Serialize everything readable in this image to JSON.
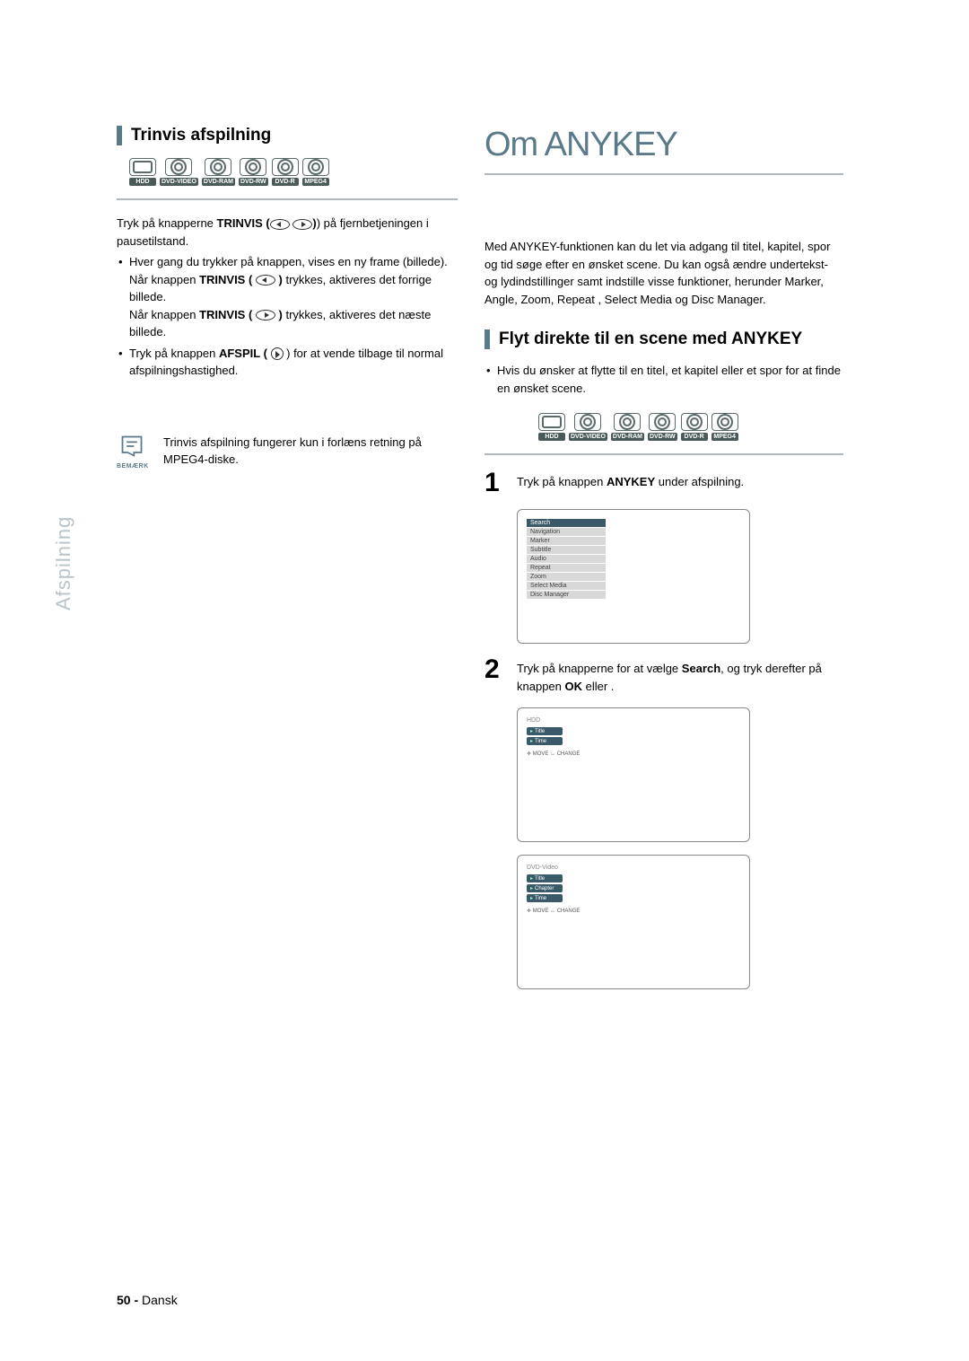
{
  "left": {
    "title": "Trinvis afspilning",
    "badges": [
      "HDD",
      "DVD-VIDEO",
      "DVD-RAM",
      "DVD-RW",
      "DVD-R",
      "MPEG4"
    ],
    "intro_a": "Tryk på knapperne ",
    "intro_b": "TRINVIS (",
    "intro_c": ") på fjernbetjeningen i pausetilstand.",
    "b1": "Hver gang du trykker på knappen, vises en ny frame (billede).",
    "b1_l2a": "Når knappen ",
    "b1_l2b": "TRINVIS ( ",
    "b1_l2c": " ) ",
    "b1_l2d": "trykkes, aktiveres det forrige billede.",
    "b1_l3a": "Når knappen ",
    "b1_l3b": "TRINVIS ( ",
    "b1_l3c": " ) ",
    "b1_l3d": "trykkes, aktiveres det næste billede.",
    "b2a": "Tryk på knappen ",
    "b2b": "AFSPIL ( ",
    "b2c": " ) for at vende tilbage til normal afspilningshastighed.",
    "note_label": "BEMÆRK",
    "note_text": "Trinvis afspilning fungerer kun i forlæns retning på MPEG4-diske."
  },
  "side_tab": "Afspilning",
  "right": {
    "big_title": "Om ANYKEY",
    "intro": "Med ANYKEY-funktionen kan du let via adgang til titel, kapitel, spor og tid søge efter en ønsket scene. Du kan også ændre undertekst- og lydindstillinger samt indstille visse funktioner, herunder Marker, Angle, Zoom, Repeat , Select Media og Disc Manager.",
    "sub_title": "Flyt direkte til en scene med ANYKEY",
    "sub_bullet": "Hvis du ønsker at flytte til en titel, et kapitel eller et spor for at finde en ønsket scene.",
    "badges": [
      "HDD",
      "DVD-VIDEO",
      "DVD-RAM",
      "DVD-RW",
      "DVD-R",
      "MPEG4"
    ],
    "step1_a": "Tryk på knappen ",
    "step1_b": "ANYKEY",
    "step1_c": " under afspilning.",
    "menu_items": [
      "Search",
      "Navigation",
      "Marker",
      "Subtitle",
      "Audio",
      "Repeat",
      "Zoom",
      "Select Media",
      "Disc Manager"
    ],
    "step2_a": "Tryk på knapperne       for at vælge ",
    "step2_b": "Search",
    "step2_c": ", og tryk derefter på knappen ",
    "step2_d": "OK",
    "step2_e": " eller    .",
    "osd1": {
      "head": "HDD",
      "rows": [
        "Title",
        "Time"
      ],
      "footer": "≑ MOVE    ↔ CHANGE"
    },
    "osd2": {
      "head": "DVD-Video",
      "rows": [
        "Title",
        "Chapter",
        "Time"
      ],
      "footer": "≑ MOVE    ↔ CHANGE"
    }
  },
  "footer_num": "50 - ",
  "footer_lang": "Dansk"
}
